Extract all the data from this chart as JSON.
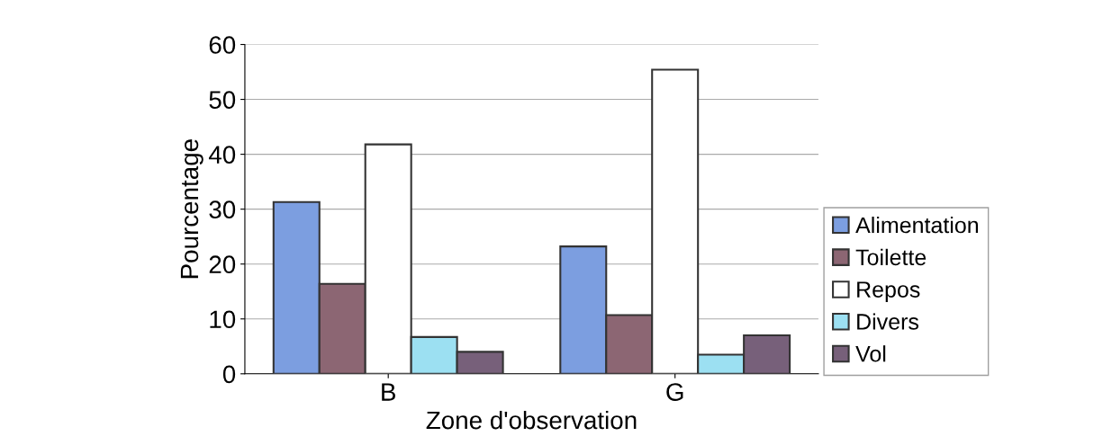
{
  "chart_data": {
    "type": "bar",
    "xlabel": "Zone d'observation",
    "ylabel": "Pourcentage",
    "categories": [
      "B",
      "G"
    ],
    "series": [
      {
        "name": "Alimentation",
        "color": "#7c9ee0",
        "values": [
          31.3,
          23.2
        ]
      },
      {
        "name": "Toilette",
        "color": "#8c6673",
        "values": [
          16.4,
          10.7
        ]
      },
      {
        "name": "Repos",
        "color": "#ffffff",
        "values": [
          41.8,
          55.4
        ]
      },
      {
        "name": "Divers",
        "color": "#9ce0f2",
        "values": [
          6.7,
          3.5
        ]
      },
      {
        "name": "Vol",
        "color": "#77607a",
        "values": [
          4.0,
          7.0
        ]
      }
    ],
    "ylim": [
      0,
      60
    ],
    "yticks": [
      0,
      10,
      20,
      30,
      40,
      50,
      60
    ],
    "grid": "y",
    "legend": "right"
  }
}
